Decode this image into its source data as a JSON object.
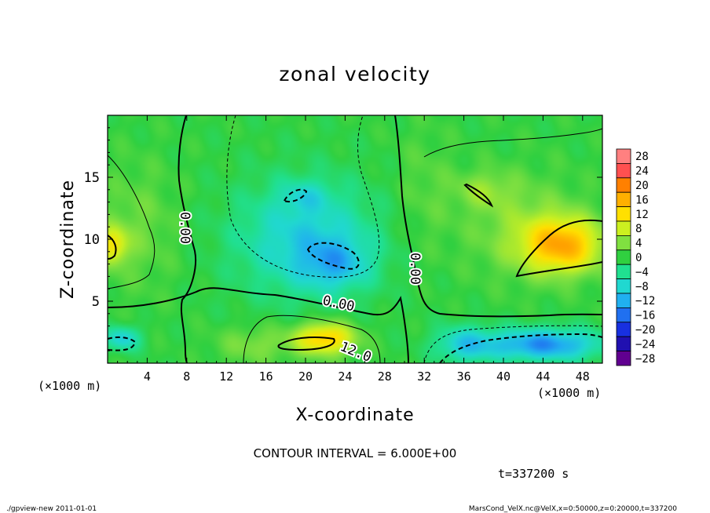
{
  "chart_data": {
    "type": "heatmap",
    "title": "zonal velocity",
    "xlabel": "X-coordinate",
    "ylabel": "Z-coordinate",
    "x_unit": "(×1000 m)",
    "z_unit": "(×1000 m)",
    "xlim": [
      0,
      50
    ],
    "zlim": [
      0,
      20
    ],
    "x_ticks": [
      4,
      8,
      12,
      16,
      20,
      24,
      28,
      32,
      36,
      40,
      44,
      48
    ],
    "z_ticks": [
      5,
      10,
      15
    ],
    "colorbar": {
      "levels": [
        28,
        24,
        20,
        16,
        12,
        8,
        4,
        0,
        -4,
        -8,
        -12,
        -16,
        -20,
        -24,
        -28
      ],
      "labels": [
        "28",
        "24",
        "20",
        "16",
        "12",
        "8",
        "4",
        "0",
        "−4",
        "−8",
        "−12",
        "−16",
        "−20",
        "−24",
        "−28"
      ],
      "colors": [
        "#ff8080",
        "#ff5050",
        "#ff8000",
        "#ffb000",
        "#ffe000",
        "#ccf020",
        "#80e040",
        "#30d040",
        "#20e090",
        "#20d8d0",
        "#20b0f0",
        "#2070f0",
        "#1830e0",
        "#2010b0",
        "#600090"
      ]
    },
    "contour_labels": [
      "0.00",
      "0.00",
      "0.00",
      "12.0"
    ],
    "contour_interval_text": "CONTOUR INTERVAL = 6.000E+00",
    "time_text": "t=337200 s",
    "field": {
      "background": 0,
      "features": [
        {
          "x": 20,
          "z": 10,
          "sx": 7,
          "sz": 4.5,
          "value": -9
        },
        {
          "x": 20,
          "z": 13.5,
          "sx": 2.5,
          "sz": 1.2,
          "value": -4
        },
        {
          "x": 23,
          "z": 8,
          "sx": 3.5,
          "sz": 2,
          "value": -7
        },
        {
          "x": 46,
          "z": 9.5,
          "sx": 4,
          "sz": 2.2,
          "value": 15
        },
        {
          "x": 42,
          "z": 11,
          "sx": 6,
          "sz": 4,
          "value": 4
        },
        {
          "x": 38,
          "z": 14,
          "sx": 3,
          "sz": 1.5,
          "value": 4
        },
        {
          "x": 22,
          "z": 2,
          "sx": 3,
          "sz": 1.3,
          "value": 14
        },
        {
          "x": 15,
          "z": 1.5,
          "sx": 4,
          "sz": 1.5,
          "value": 4
        },
        {
          "x": 44,
          "z": 1.5,
          "sx": 6,
          "sz": 1.3,
          "value": -14
        },
        {
          "x": 36,
          "z": 1.5,
          "sx": 3,
          "sz": 1.5,
          "value": -8
        },
        {
          "x": 1.5,
          "z": 2,
          "sx": 1.8,
          "sz": 1,
          "value": -9
        },
        {
          "x": 0.5,
          "z": 9.5,
          "sx": 1.5,
          "sz": 1.5,
          "value": 10
        },
        {
          "x": 3,
          "z": 11,
          "sx": 4,
          "sz": 5,
          "value": 3
        },
        {
          "x": 32,
          "z": 14,
          "sx": 3,
          "sz": 5,
          "value": 2
        }
      ]
    }
  },
  "footer": {
    "left": "./gpview-new  2011-01-01",
    "right": "MarsCond_VelX.nc@VelX,x=0:50000,z=0:20000,t=337200"
  }
}
